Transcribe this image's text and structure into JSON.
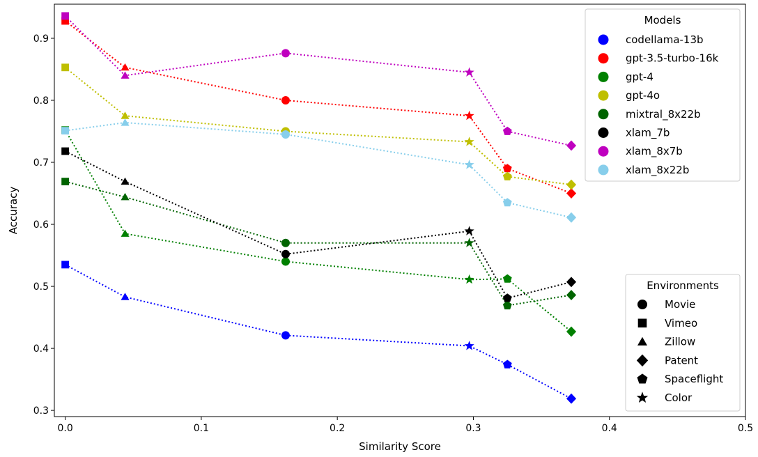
{
  "chart_data": {
    "type": "scatter",
    "xlabel": "Similarity Score",
    "ylabel": "Accuracy",
    "xlim": [
      -0.008,
      0.5
    ],
    "ylim": [
      0.29,
      0.955
    ],
    "xticks": [
      "0.0",
      "0.1",
      "0.2",
      "0.3",
      "0.4",
      "0.5"
    ],
    "yticks": [
      "0.3",
      "0.4",
      "0.5",
      "0.6",
      "0.7",
      "0.8",
      "0.9"
    ],
    "x": [
      0.0,
      0.044,
      0.162,
      0.297,
      0.325,
      0.372
    ],
    "environments": [
      "Vimeo",
      "Zillow",
      "Movie",
      "Color",
      "Spaceflight",
      "Patent"
    ],
    "line_style": "dotted",
    "series": [
      {
        "name": "codellama-13b",
        "color": "#0000ff",
        "values": [
          0.535,
          0.483,
          0.421,
          0.404,
          0.374,
          0.319
        ]
      },
      {
        "name": "gpt-3.5-turbo-16k",
        "color": "#ff0000",
        "values": [
          0.928,
          0.853,
          0.8,
          0.775,
          0.69,
          0.65
        ]
      },
      {
        "name": "gpt-4",
        "color": "#008000",
        "values": [
          0.752,
          0.585,
          0.54,
          0.511,
          0.512,
          0.427
        ]
      },
      {
        "name": "gpt-4o",
        "color": "#bfbf00",
        "values": [
          0.853,
          0.775,
          0.75,
          0.733,
          0.677,
          0.664
        ]
      },
      {
        "name": "mixtral_8x22b",
        "color": "#006400",
        "values": [
          0.669,
          0.644,
          0.57,
          0.57,
          0.469,
          0.486
        ]
      },
      {
        "name": "xlam_7b",
        "color": "#000000",
        "values": [
          0.718,
          0.669,
          0.552,
          0.589,
          0.481,
          0.507
        ]
      },
      {
        "name": "xlam_8x7b",
        "color": "#bf00bf",
        "values": [
          0.936,
          0.84,
          0.876,
          0.845,
          0.75,
          0.727
        ]
      },
      {
        "name": "xlam_8x22b",
        "color": "#87ceeb",
        "values": [
          0.751,
          0.764,
          0.745,
          0.696,
          0.635,
          0.611
        ]
      }
    ],
    "legend_models": {
      "title": "Models",
      "placement": "top-right",
      "entries": [
        "codellama-13b",
        "gpt-3.5-turbo-16k",
        "gpt-4",
        "gpt-4o",
        "mixtral_8x22b",
        "xlam_7b",
        "xlam_8x7b",
        "xlam_8x22b"
      ]
    },
    "legend_environments": {
      "title": "Environments",
      "placement": "bottom-right",
      "entries": [
        {
          "label": "Movie",
          "marker": "circle"
        },
        {
          "label": "Vimeo",
          "marker": "square"
        },
        {
          "label": "Zillow",
          "marker": "triangle"
        },
        {
          "label": "Patent",
          "marker": "diamond"
        },
        {
          "label": "Spaceflight",
          "marker": "pentagon"
        },
        {
          "label": "Color",
          "marker": "star"
        }
      ]
    }
  }
}
